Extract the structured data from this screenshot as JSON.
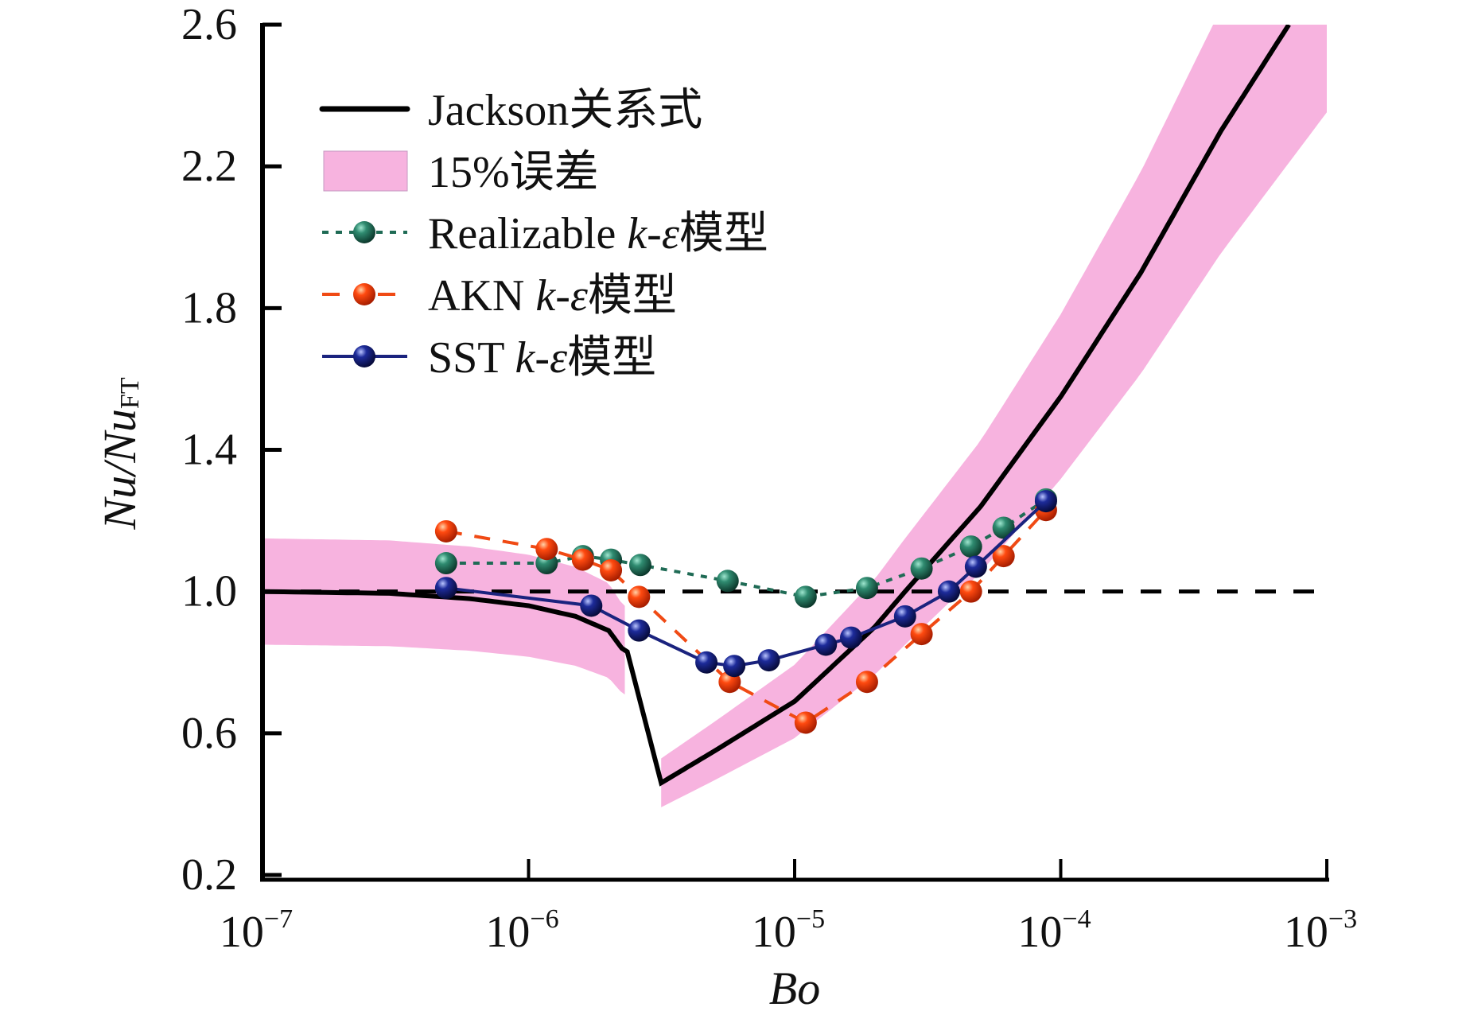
{
  "chart_data": {
    "type": "line",
    "title": "",
    "xlabel": "Bo",
    "ylabel": "Nu/Nu",
    "ylabel_subscript": "FT",
    "xscale": "log",
    "xlim": [
      1e-07,
      0.001
    ],
    "ylim": [
      0.2,
      2.6
    ],
    "x_ticks": [
      {
        "value": 1e-07,
        "base": "10",
        "exp": "-7"
      },
      {
        "value": 1e-06,
        "base": "10",
        "exp": "-6"
      },
      {
        "value": 1e-05,
        "base": "10",
        "exp": "-5"
      },
      {
        "value": 0.0001,
        "base": "10",
        "exp": "-4"
      },
      {
        "value": 0.001,
        "base": "10",
        "exp": "-3"
      }
    ],
    "y_ticks": [
      "0.2",
      "0.6",
      "1.0",
      "1.4",
      "1.8",
      "2.2",
      "2.6"
    ],
    "grid": false,
    "legend_position": "top-left",
    "reference_line": {
      "y": 1.0,
      "style": "dashed",
      "color": "#000000"
    },
    "series": [
      {
        "name": "Jackson关系式",
        "kind": "curve",
        "color": "#000000",
        "style": "solid",
        "x": [
          1e-07,
          3e-07,
          6e-07,
          1e-06,
          1.5e-06,
          2e-06,
          2.24e-06,
          2.35e-06,
          3.15e-06,
          5e-06,
          1e-05,
          2e-05,
          2.6e-05,
          5e-05,
          0.0001,
          0.0002,
          0.0004,
          0.00072
        ],
        "y": [
          1.0,
          0.995,
          0.98,
          0.96,
          0.93,
          0.89,
          0.84,
          0.83,
          0.46,
          0.55,
          0.69,
          0.9,
          1.0,
          1.24,
          1.55,
          1.9,
          2.3,
          2.6
        ]
      },
      {
        "name": "15%误差",
        "kind": "band",
        "color": "#f7b3df",
        "relative_error": 0.15,
        "segments": [
          {
            "x_from": 1e-07,
            "x_to": 2.3e-06
          },
          {
            "x_from": 3.15e-06,
            "x_to": 0.001
          }
        ]
      },
      {
        "name": "Realizable k-ε模型",
        "label_parts": [
          "Realizable ",
          "k",
          "-",
          "ε",
          "模型"
        ],
        "kind": "markers",
        "color": "#1f6b55",
        "line_style": "dotted",
        "x": [
          4.9e-07,
          1.17e-06,
          1.6e-06,
          2.04e-06,
          2.63e-06,
          5.6e-06,
          1.1e-05,
          1.87e-05,
          3e-05,
          4.6e-05,
          6.1e-05,
          8.8e-05
        ],
        "y": [
          1.08,
          1.08,
          1.1,
          1.09,
          1.075,
          1.03,
          0.985,
          1.01,
          1.065,
          1.127,
          1.18,
          1.26
        ]
      },
      {
        "name": "AKN k-ε模型",
        "label_parts": [
          "AKN ",
          "k",
          "-",
          "ε",
          "模型"
        ],
        "kind": "markers",
        "color": "#f04a14",
        "line_style": "dashed",
        "x": [
          4.9e-07,
          1.17e-06,
          1.6e-06,
          2.04e-06,
          2.6e-06,
          5.7e-06,
          1.1e-05,
          1.87e-05,
          3e-05,
          4.6e-05,
          6.1e-05,
          8.8e-05
        ],
        "y": [
          1.17,
          1.12,
          1.09,
          1.06,
          0.985,
          0.745,
          0.63,
          0.745,
          0.88,
          1.0,
          1.1,
          1.23
        ]
      },
      {
        "name": "SST k-ε模型",
        "label_parts": [
          "SST ",
          "k",
          "-",
          "ε",
          "模型"
        ],
        "kind": "markers",
        "color": "#1a237e",
        "line_style": "solid",
        "x": [
          4.9e-07,
          1.72e-06,
          2.6e-06,
          4.66e-06,
          5.93e-06,
          8e-06,
          1.31e-05,
          1.63e-05,
          2.6e-05,
          3.8e-05,
          4.8e-05,
          8.8e-05
        ],
        "y": [
          1.01,
          0.96,
          0.89,
          0.8,
          0.79,
          0.806,
          0.85,
          0.87,
          0.93,
          1.0,
          1.07,
          1.255
        ]
      }
    ]
  }
}
